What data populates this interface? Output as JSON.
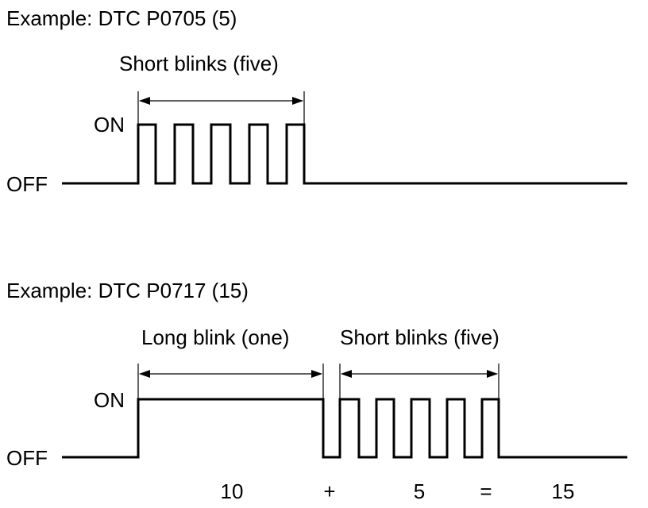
{
  "example1": {
    "title": "Example: DTC P0705 (5)",
    "span_label": "Short blinks (five)",
    "on_label": "ON",
    "off_label": "OFF"
  },
  "example2": {
    "title": "Example: DTC P0717 (15)",
    "long_label": "Long blink (one)",
    "short_label": "Short blinks (five)",
    "on_label": "ON",
    "off_label": "OFF",
    "equation": {
      "term1": "10",
      "plus": "+",
      "term2": "5",
      "equals": "=",
      "result": "15"
    }
  }
}
